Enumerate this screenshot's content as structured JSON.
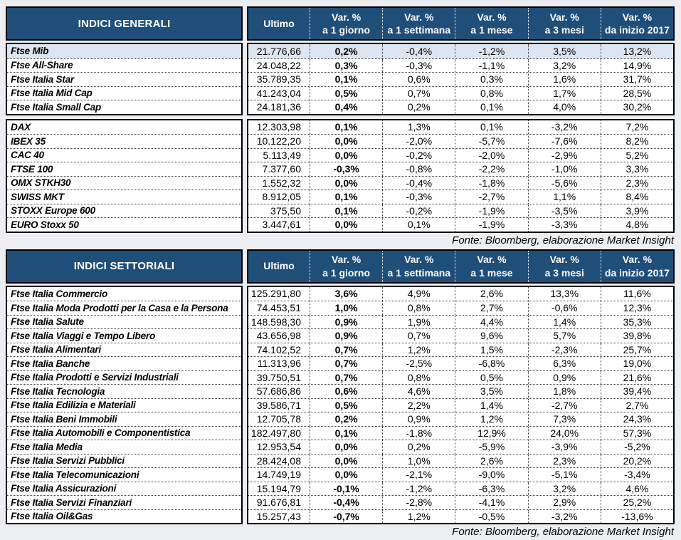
{
  "source_note": "Fonte: Bloomberg, elaborazione Market Insight",
  "colors": {
    "header_bg": "#1F4E79",
    "header_text": "#FFFFFF",
    "highlight_row_bg": "#DCE6F1",
    "page_bg": "#ECEEF2"
  },
  "columns": [
    {
      "key": "ultimo",
      "title": "Ultimo",
      "subtitle": ""
    },
    {
      "key": "var-1-giorno",
      "title": "Var. %",
      "subtitle": "a 1 giorno"
    },
    {
      "key": "var-1-settimana",
      "title": "Var. %",
      "subtitle": "a 1 settimana"
    },
    {
      "key": "var-1-mese",
      "title": "Var. %",
      "subtitle": "a 1 mese"
    },
    {
      "key": "var-3-mesi",
      "title": "Var. %",
      "subtitle": "a 3 mesi"
    },
    {
      "key": "var-da-inizio-2017",
      "title": "Var. %",
      "subtitle": "da inizio 2017"
    }
  ],
  "tables": [
    {
      "title": "INDICI GENERALI",
      "groups": [
        {
          "rows": [
            {
              "name": "Ftse Mib",
              "highlight": true,
              "values": [
                "21.776,66",
                "0,2%",
                "-0,4%",
                "-1,2%",
                "3,5%",
                "13,2%"
              ]
            },
            {
              "name": "Ftse All-Share",
              "highlight": false,
              "values": [
                "24.048,22",
                "0,3%",
                "-0,3%",
                "-1,1%",
                "3,2%",
                "14,9%"
              ]
            },
            {
              "name": "Ftse Italia Star",
              "highlight": false,
              "values": [
                "35.789,35",
                "0,1%",
                "0,6%",
                "0,3%",
                "1,6%",
                "31,7%"
              ]
            },
            {
              "name": "Ftse Italia Mid Cap",
              "highlight": false,
              "values": [
                "41.243,04",
                "0,5%",
                "0,7%",
                "0,8%",
                "1,7%",
                "28,5%"
              ]
            },
            {
              "name": "Ftse Italia Small Cap",
              "highlight": false,
              "values": [
                "24.181,36",
                "0,4%",
                "0,2%",
                "0,1%",
                "4,0%",
                "30,2%"
              ]
            }
          ]
        },
        {
          "rows": [
            {
              "name": "DAX",
              "highlight": false,
              "values": [
                "12.303,98",
                "0,1%",
                "1,3%",
                "0,1%",
                "-3,2%",
                "7,2%"
              ]
            },
            {
              "name": "IBEX 35",
              "highlight": false,
              "values": [
                "10.122,20",
                "0,0%",
                "-2,0%",
                "-5,7%",
                "-7,6%",
                "8,2%"
              ]
            },
            {
              "name": "CAC 40",
              "highlight": false,
              "values": [
                "5.113,49",
                "0,0%",
                "-0,2%",
                "-2,0%",
                "-2,9%",
                "5,2%"
              ]
            },
            {
              "name": "FTSE 100",
              "highlight": false,
              "values": [
                "7.377,60",
                "-0,3%",
                "-0,8%",
                "-2,2%",
                "-1,0%",
                "3,3%"
              ]
            },
            {
              "name": "OMX STKH30",
              "highlight": false,
              "values": [
                "1.552,32",
                "0,0%",
                "-0,4%",
                "-1,8%",
                "-5,6%",
                "2,3%"
              ]
            },
            {
              "name": "SWISS MKT",
              "highlight": false,
              "values": [
                "8.912,05",
                "0,1%",
                "-0,3%",
                "-2,7%",
                "1,1%",
                "8,4%"
              ]
            },
            {
              "name": "STOXX Europe 600",
              "highlight": false,
              "values": [
                "375,50",
                "0,1%",
                "-0,2%",
                "-1,9%",
                "-3,5%",
                "3,9%"
              ]
            },
            {
              "name": "EURO Stoxx 50",
              "highlight": false,
              "values": [
                "3.447,61",
                "0,0%",
                "0,1%",
                "-1,9%",
                "-3,3%",
                "4,8%"
              ]
            }
          ]
        }
      ]
    },
    {
      "title": "INDICI SETTORIALI",
      "groups": [
        {
          "rows": [
            {
              "name": "Ftse Italia Commercio",
              "highlight": false,
              "values": [
                "125.291,80",
                "3,6%",
                "4,9%",
                "2,6%",
                "13,3%",
                "11,6%"
              ]
            },
            {
              "name": "Ftse Italia Moda Prodotti per la Casa e la Persona",
              "highlight": false,
              "values": [
                "74.453,51",
                "1,0%",
                "0,8%",
                "2,7%",
                "-0,6%",
                "12,3%"
              ]
            },
            {
              "name": "Ftse Italia Salute",
              "highlight": false,
              "values": [
                "148.598,30",
                "0,9%",
                "1,9%",
                "4,4%",
                "1,4%",
                "35,3%"
              ]
            },
            {
              "name": "Ftse Italia Viaggi e Tempo Libero",
              "highlight": false,
              "values": [
                "43.656,98",
                "0,9%",
                "0,7%",
                "9,6%",
                "5,7%",
                "39,8%"
              ]
            },
            {
              "name": "Ftse Italia Alimentari",
              "highlight": false,
              "values": [
                "74.102,52",
                "0,7%",
                "1,2%",
                "1,5%",
                "-2,3%",
                "25,7%"
              ]
            },
            {
              "name": "Ftse Italia Banche",
              "highlight": false,
              "values": [
                "11.313,96",
                "0,7%",
                "-2,5%",
                "-6,8%",
                "6,3%",
                "19,0%"
              ]
            },
            {
              "name": "Ftse Italia Prodotti e Servizi Industriali",
              "highlight": false,
              "values": [
                "39.750,51",
                "0,7%",
                "0,8%",
                "0,5%",
                "0,9%",
                "21,6%"
              ]
            },
            {
              "name": "Ftse Italia Tecnologia",
              "highlight": false,
              "values": [
                "57.686,86",
                "0,6%",
                "4,6%",
                "3,5%",
                "1,8%",
                "39,4%"
              ]
            },
            {
              "name": "Ftse Italia Edilizia e Materiali",
              "highlight": false,
              "values": [
                "39.586,71",
                "0,5%",
                "2,2%",
                "1,4%",
                "-2,7%",
                "2,7%"
              ]
            },
            {
              "name": "Ftse Italia Beni Immobili",
              "highlight": false,
              "values": [
                "12.705,78",
                "0,2%",
                "0,9%",
                "1,2%",
                "7,3%",
                "24,3%"
              ]
            },
            {
              "name": "Ftse Italia Automobili e Componentistica",
              "highlight": false,
              "values": [
                "182.497,80",
                "0,1%",
                "-1,8%",
                "12,9%",
                "24,0%",
                "57,3%"
              ]
            },
            {
              "name": "Ftse Italia Media",
              "highlight": false,
              "values": [
                "12.953,54",
                "0,0%",
                "0,2%",
                "-5,9%",
                "-3,9%",
                "-5,2%"
              ]
            },
            {
              "name": "Ftse Italia Servizi Pubblici",
              "highlight": false,
              "values": [
                "28.424,08",
                "0,0%",
                "1,0%",
                "2,6%",
                "2,3%",
                "20,2%"
              ]
            },
            {
              "name": "Ftse Italia Telecomunicazioni",
              "highlight": false,
              "values": [
                "14.749,19",
                "0,0%",
                "-2,1%",
                "-9,0%",
                "-5,1%",
                "-3,4%"
              ]
            },
            {
              "name": "Ftse Italia Assicurazioni",
              "highlight": false,
              "values": [
                "15.194,79",
                "-0,1%",
                "-1,2%",
                "-6,3%",
                "3,2%",
                "4,6%"
              ]
            },
            {
              "name": "Ftse Italia Servizi Finanziari",
              "highlight": false,
              "values": [
                "91.676,81",
                "-0,4%",
                "-2,8%",
                "-4,1%",
                "2,9%",
                "25,2%"
              ]
            },
            {
              "name": "Ftse Italia Oil&Gas",
              "highlight": false,
              "values": [
                "15.257,43",
                "-0,7%",
                "1,2%",
                "-0,5%",
                "-3,2%",
                "-13,6%"
              ]
            }
          ]
        }
      ]
    }
  ]
}
